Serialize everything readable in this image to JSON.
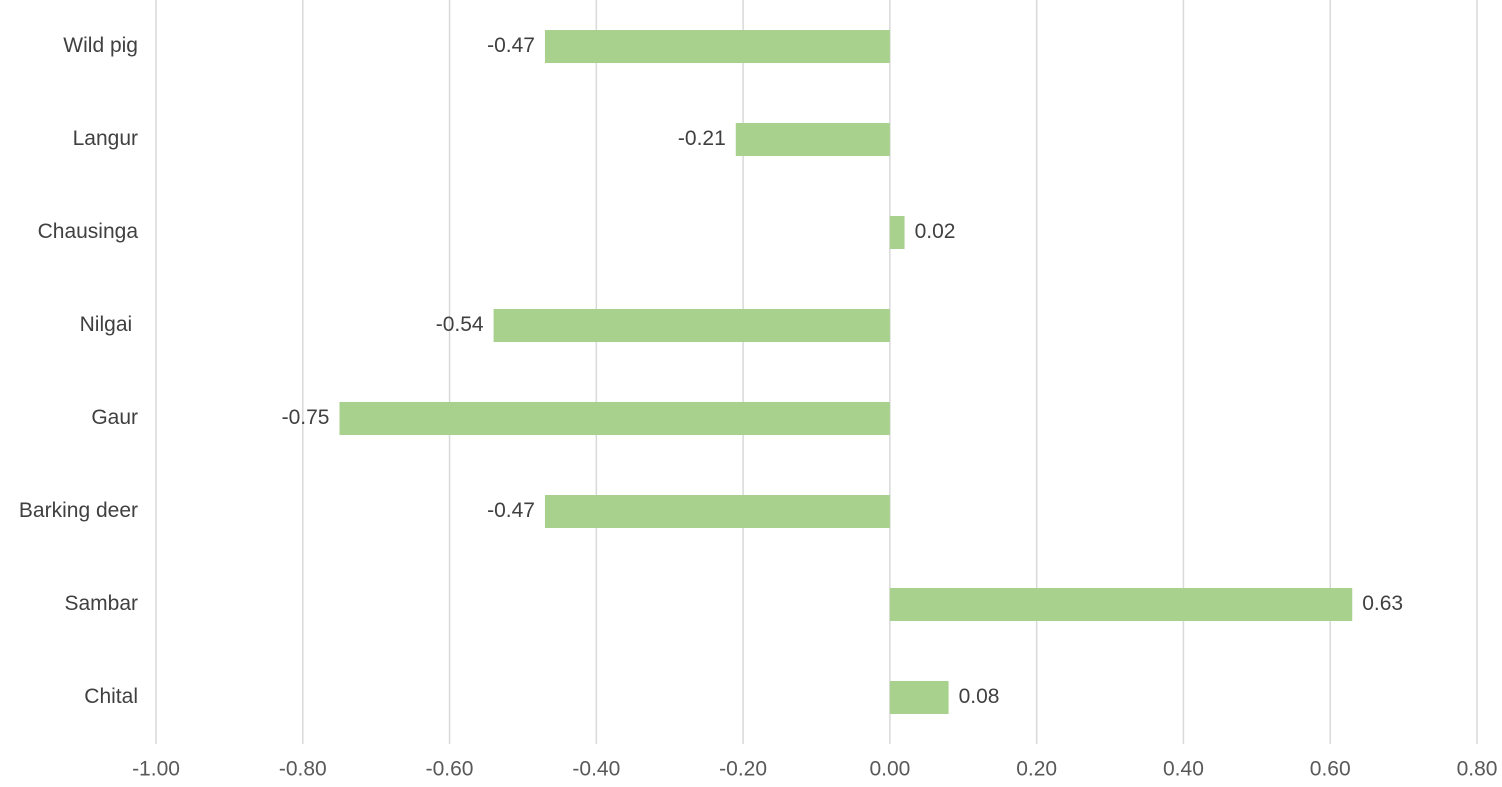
{
  "chart_data": {
    "type": "bar",
    "orientation": "horizontal",
    "categories": [
      "Wild pig",
      "Langur",
      "Chausinga",
      "Nilgai ",
      "Gaur",
      "Barking deer",
      "Sambar",
      "Chital"
    ],
    "values": [
      -0.47,
      -0.21,
      0.02,
      -0.54,
      -0.75,
      -0.47,
      0.63,
      0.08
    ],
    "value_labels": [
      "-0.47",
      "-0.21",
      "0.02",
      "-0.54",
      "-0.75",
      "-0.47",
      "0.63",
      "0.08"
    ],
    "xlim": [
      -1.0,
      0.8
    ],
    "x_ticks": [
      -1.0,
      -0.8,
      -0.6,
      -0.4,
      -0.2,
      0.0,
      0.2,
      0.4,
      0.6,
      0.8
    ],
    "x_tick_labels": [
      "-1.00",
      "-0.80",
      "-0.60",
      "-0.40",
      "-0.20",
      "0.00",
      "0.20",
      "0.40",
      "0.60",
      "0.80"
    ],
    "title": "",
    "xlabel": "",
    "ylabel": "",
    "grid": "vertical",
    "legend": "none",
    "colors": {
      "bar": "#a9d18e",
      "grid": "#d9d9d9",
      "tick_text": "#595959",
      "category_text": "#404040",
      "value_text": "#404040"
    }
  }
}
